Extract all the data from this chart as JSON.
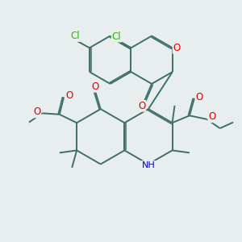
{
  "bg": "#e8eeed",
  "bc": "#3d7068",
  "bw": 1.4,
  "dbo": 0.055,
  "colors": {
    "O": "#dd0000",
    "N": "#0000cc",
    "Cl": "#22bb00",
    "C": "#3d7068"
  },
  "figsize": [
    3.0,
    3.0
  ],
  "dpi": 100
}
